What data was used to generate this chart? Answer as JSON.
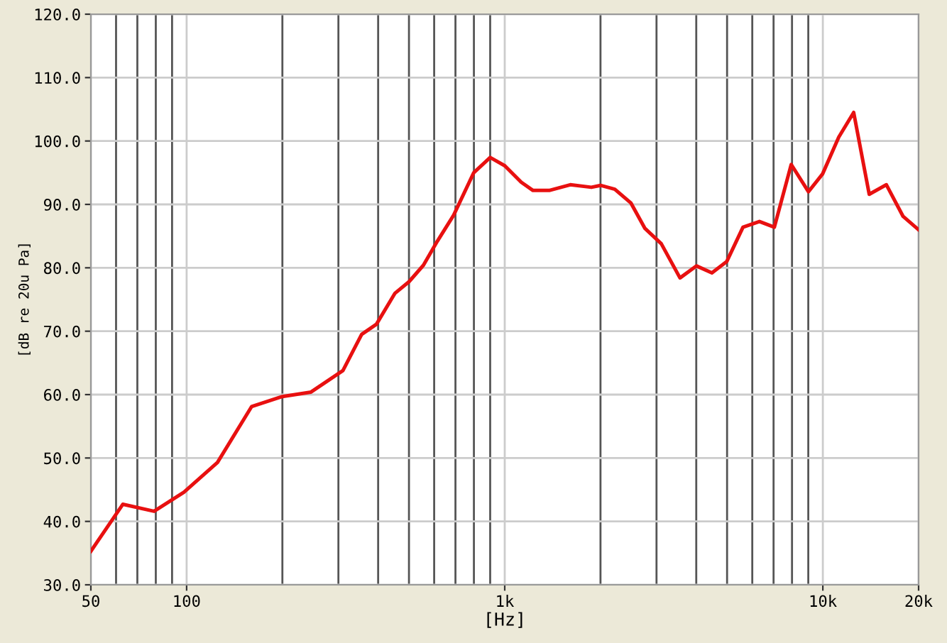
{
  "chart_data": {
    "type": "line",
    "xlabel": "[Hz]",
    "ylabel": "[dB re 20u Pa]",
    "log": "x",
    "xlim": [
      50,
      20000
    ],
    "ylim": [
      30,
      120
    ],
    "xticks": [
      50,
      {
        "value": 60,
        "label": null
      },
      {
        "value": 70,
        "label": null
      },
      {
        "value": 80,
        "label": null
      },
      {
        "value": 90,
        "label": null
      },
      100,
      {
        "value": 200,
        "label": null
      },
      {
        "value": 300,
        "label": null
      },
      {
        "value": 400,
        "label": null
      },
      {
        "value": 500,
        "label": null
      },
      {
        "value": 600,
        "label": null
      },
      {
        "value": 700,
        "label": null
      },
      {
        "value": 800,
        "label": null
      },
      {
        "value": 900,
        "label": null
      },
      {
        "value": 1000,
        "label": "1k"
      },
      {
        "value": 2000,
        "label": null
      },
      {
        "value": 3000,
        "label": null
      },
      {
        "value": 4000,
        "label": null
      },
      {
        "value": 5000,
        "label": null
      },
      {
        "value": 6000,
        "label": null
      },
      {
        "value": 7000,
        "label": null
      },
      {
        "value": 8000,
        "label": null
      },
      {
        "value": 9000,
        "label": null
      },
      {
        "value": 10000,
        "label": "10k"
      },
      {
        "value": 20000,
        "label": "20k"
      }
    ],
    "yticks": [
      {
        "value": 30,
        "label": "30.0"
      },
      {
        "value": 40,
        "label": "40.0"
      },
      {
        "value": 50,
        "label": "50.0"
      },
      {
        "value": 60,
        "label": "60.0"
      },
      {
        "value": 70,
        "label": "70.0"
      },
      {
        "value": 80,
        "label": "80.0"
      },
      {
        "value": 90,
        "label": "90.0"
      },
      {
        "value": 100,
        "label": "100.0"
      },
      {
        "value": 110,
        "label": "110.0"
      },
      {
        "value": 120,
        "label": "120.0"
      }
    ],
    "grid": true,
    "marker": "none",
    "line_style": "solid",
    "series": [
      {
        "color": "#e81010",
        "x": [
          50,
          63,
          79,
          98,
          125,
          160,
          200,
          246,
          310,
          355,
          395,
          452,
          500,
          555,
          614,
          691,
          799,
          900,
          1000,
          1127,
          1227,
          1380,
          1607,
          1872,
          2000,
          2218,
          2494,
          2760,
          3105,
          3556,
          4004,
          4480,
          4990,
          5610,
          6320,
          7040,
          7955,
          9010,
          9980,
          11220,
          12500,
          13990,
          15840,
          17880,
          20000
        ],
        "values": [
          35.3,
          42.7,
          41.6,
          44.6,
          49.3,
          58.1,
          59.7,
          60.4,
          63.8,
          69.5,
          71.1,
          76.0,
          77.8,
          80.4,
          84.2,
          88.3,
          95.0,
          97.4,
          96.1,
          93.5,
          92.2,
          92.2,
          93.1,
          92.7,
          93.0,
          92.4,
          90.2,
          86.2,
          83.8,
          78.4,
          80.3,
          79.2,
          81.0,
          86.4,
          87.3,
          86.4,
          96.3,
          92.0,
          94.8,
          100.6,
          104.5,
          91.6,
          93.1,
          88.1,
          86.0
        ]
      }
    ]
  }
}
